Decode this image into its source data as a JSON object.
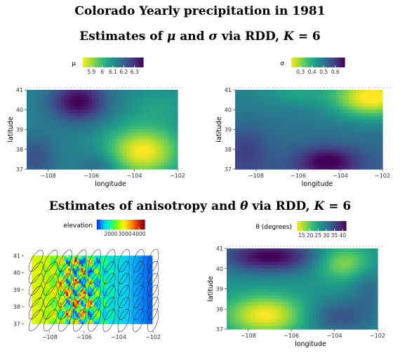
{
  "titles": {
    "main": "Colorado Yearly precipitation in 1981",
    "rdd_prefix": "Estimates of ",
    "rdd_mu": "μ",
    "rdd_and": " and ",
    "rdd_sigma": "σ",
    "rdd_suffix": " via RDD, ",
    "k_var": "K",
    "k_value": " = 6",
    "aniso_prefix": "Estimates of anisotropy and ",
    "aniso_theta": "θ",
    "aniso_suffix": " via RDD, "
  },
  "chart_data": [
    {
      "type": "heatmap",
      "xlabel": "longitude",
      "ylabel": "latitude",
      "xlim": [
        -109,
        -102
      ],
      "ylim": [
        37,
        41
      ],
      "xticks": [
        -108,
        -106,
        -104,
        -102
      ],
      "yticks": [
        37,
        38,
        39,
        40,
        41
      ],
      "legend": {
        "title": "μ",
        "ticks": [
          5.9,
          6.0,
          6.1,
          6.2,
          6.3
        ],
        "range": [
          5.82,
          6.38
        ],
        "position": "top",
        "palette": "viridis-reversed"
      },
      "field_value_range": [
        5.85,
        6.35
      ],
      "features": [
        {
          "description": "high",
          "lon": -106.6,
          "lat": 40.4,
          "value": 6.35
        },
        {
          "description": "low",
          "lon": -103.6,
          "lat": 37.9,
          "value": 5.85
        }
      ]
    },
    {
      "type": "heatmap",
      "xlabel": "longitude",
      "ylabel": "latitude",
      "xlim": [
        -109,
        -102
      ],
      "ylim": [
        37,
        41
      ],
      "xticks": [
        -108,
        -106,
        -104,
        -102
      ],
      "yticks": [
        37,
        38,
        39,
        40,
        41
      ],
      "legend": {
        "title": "σ",
        "ticks": [
          0.3,
          0.4,
          0.5,
          0.6
        ],
        "range": [
          0.22,
          0.68
        ],
        "position": "top",
        "palette": "viridis-reversed"
      },
      "field_value_range": [
        0.25,
        0.65
      ],
      "features": [
        {
          "description": "low",
          "lon": -102.5,
          "lat": 40.6,
          "value": 0.25
        },
        {
          "description": "high",
          "lon": -104.6,
          "lat": 37.4,
          "value": 0.65
        }
      ]
    },
    {
      "type": "heatmap",
      "xlabel": "",
      "ylabel": "",
      "xlim": [
        -109.5,
        -101.8
      ],
      "ylim": [
        36.6,
        41.3
      ],
      "xticks": [
        -108,
        -106,
        -104,
        -102
      ],
      "yticks": [
        37,
        38,
        39,
        40,
        41
      ],
      "legend": {
        "title": "elevation",
        "ticks": [
          2000,
          3000,
          4000
        ],
        "range": [
          1000,
          4400
        ],
        "position": "top",
        "palette": "terrain"
      },
      "overlay": "anisotropy ellipses"
    },
    {
      "type": "heatmap",
      "xlabel": "longitude",
      "ylabel": "latitude",
      "xlim": [
        -109,
        -102
      ],
      "ylim": [
        37,
        41
      ],
      "xticks": [
        -108,
        -106,
        -104,
        -102
      ],
      "yticks": [
        37,
        38,
        39,
        40,
        41
      ],
      "legend": {
        "title": "θ (degrees)",
        "ticks": [
          15,
          20,
          25,
          30,
          35,
          40
        ],
        "range": [
          12,
          42
        ],
        "position": "top",
        "palette": "viridis-reversed"
      },
      "field_value_range": [
        13,
        41
      ],
      "features": [
        {
          "description": "high",
          "lon": -107.0,
          "lat": 40.6,
          "value": 41
        },
        {
          "description": "low",
          "lon": -107.2,
          "lat": 37.7,
          "value": 13
        }
      ]
    }
  ]
}
